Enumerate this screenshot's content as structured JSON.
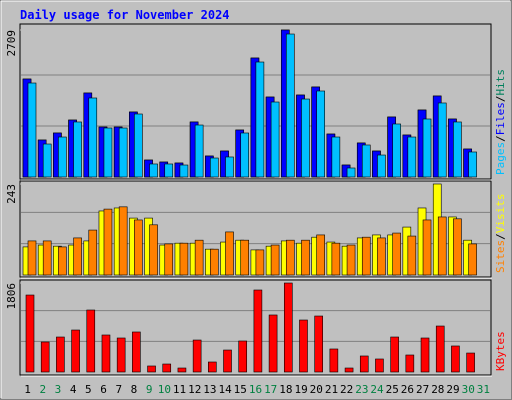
{
  "chart_data": {
    "type": "bar",
    "title": "Daily usage for November 2024",
    "categories": [
      "1",
      "2",
      "3",
      "4",
      "5",
      "6",
      "7",
      "8",
      "9",
      "10",
      "11",
      "12",
      "13",
      "14",
      "15",
      "16",
      "17",
      "18",
      "19",
      "20",
      "21",
      "22",
      "23",
      "24",
      "25",
      "26",
      "27",
      "28",
      "29",
      "30",
      "31"
    ],
    "category_colors": [
      "#000000",
      "#008040",
      "#008040",
      "#000000",
      "#000000",
      "#000000",
      "#000000",
      "#000000",
      "#008040",
      "#008040",
      "#000000",
      "#000000",
      "#000000",
      "#000000",
      "#000000",
      "#008040",
      "#008040",
      "#000000",
      "#000000",
      "#000000",
      "#000000",
      "#000000",
      "#008040",
      "#008040",
      "#000000",
      "#000000",
      "#000000",
      "#000000",
      "#000000",
      "#008040",
      "#008040"
    ],
    "legend_separator": "/",
    "panels": [
      {
        "ylim": [
          0,
          2709
        ],
        "yticks": [
          2709
        ],
        "series": [
          {
            "name": "Pages",
            "color": "#00c0ff",
            "values": [
              1732,
              608,
              737,
              1014,
              1456,
              903,
              903,
              1161,
              240,
              240,
              221,
              958,
              350,
              369,
              811,
              2119,
              1382,
              2635,
              1437,
              1585,
              737,
              166,
              590,
              405,
              977,
              737,
              1069,
              1364,
              1014,
              461,
              0
            ]
          },
          {
            "name": "Files",
            "color": "#0000ff",
            "values": [
              1806,
              682,
              811,
              1050,
              1548,
              921,
              921,
              1198,
              313,
              276,
              258,
              1014,
              387,
              479,
              866,
              2193,
              1474,
              2709,
              1511,
              1659,
              792,
              221,
              627,
              479,
              1106,
              774,
              1235,
              1493,
              1069,
              516,
              0
            ]
          },
          {
            "name": "Hits",
            "color": "#00805c",
            "values": [
              1806,
              682,
              811,
              1050,
              1548,
              921,
              921,
              1198,
              313,
              276,
              258,
              1014,
              387,
              479,
              866,
              2193,
              1474,
              2709,
              1511,
              1659,
              792,
              221,
              627,
              479,
              1106,
              774,
              1235,
              1493,
              1069,
              516,
              0
            ]
          }
        ]
      },
      {
        "ylim": [
          0,
          243
        ],
        "yticks": [
          243
        ],
        "series": [
          {
            "name": "Sites",
            "color": "#ff8000",
            "values": [
              91,
              91,
              75,
              99,
              120,
              176,
              182,
              147,
              134,
              83,
              85,
              93,
              69,
              115,
              93,
              67,
              80,
              93,
              93,
              107,
              85,
              80,
              101,
              99,
              112,
              104,
              147,
              155,
              150,
              83,
              0
            ]
          },
          {
            "name": "Visits",
            "color": "#ffff00",
            "values": [
              75,
              80,
              77,
              80,
              91,
              171,
              179,
              152,
              152,
              80,
              85,
              85,
              69,
              88,
              93,
              67,
              77,
              91,
              85,
              101,
              88,
              77,
              99,
              107,
              107,
              128,
              179,
              243,
              155,
              93,
              0
            ]
          }
        ]
      },
      {
        "ylim": [
          0,
          1806
        ],
        "yticks": [
          1806
        ],
        "series": [
          {
            "name": "KBytes",
            "color": "#ff0000",
            "values": [
              1562,
              609,
              710,
              852,
              1258,
              751,
              690,
              812,
              122,
              162,
              81,
              649,
              203,
              446,
              629,
              1664,
              1157,
              1806,
              1055,
              1136,
              467,
              81,
              325,
              264,
              710,
              345,
              690,
              933,
              528,
              385,
              0
            ]
          }
        ]
      }
    ]
  }
}
